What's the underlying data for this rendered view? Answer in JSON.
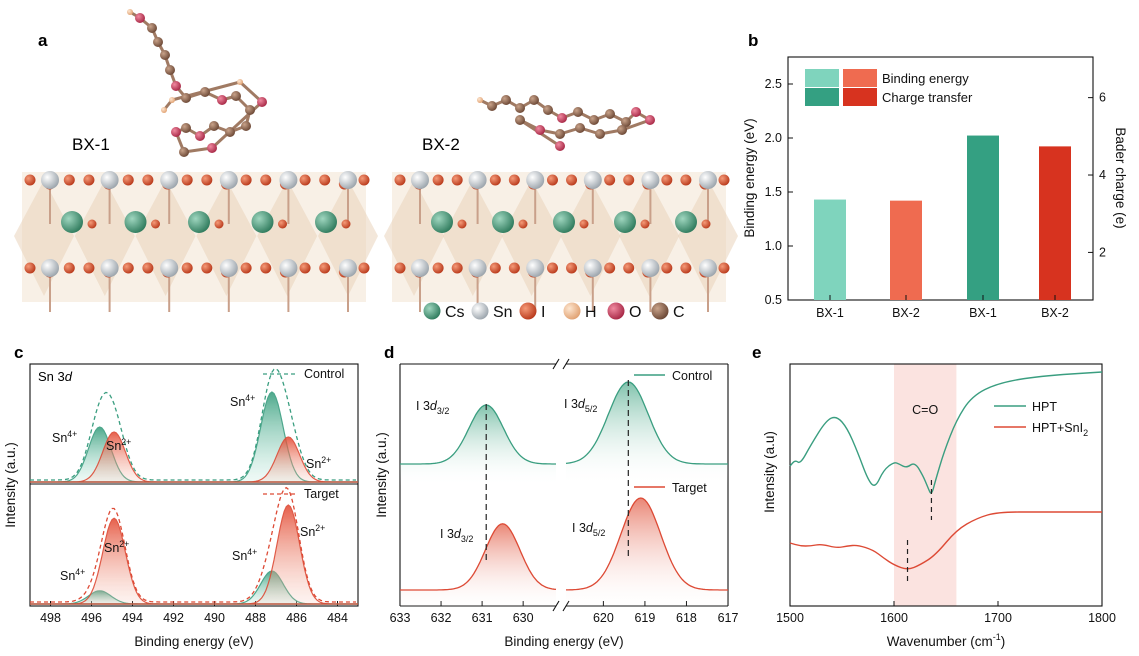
{
  "panels": {
    "a": {
      "letter": "a",
      "label_left": "BX-1",
      "label_right": "BX-2"
    },
    "b": {
      "letter": "b"
    },
    "c": {
      "letter": "c",
      "title_main": "Sn 3",
      "title_italic": "d"
    },
    "d": {
      "letter": "d"
    },
    "e": {
      "letter": "e",
      "annotation": "C=O"
    }
  },
  "structure_legend": [
    {
      "label": "Cs",
      "color": "#3f8f70"
    },
    {
      "label": "Sn",
      "color": "#d8dce0"
    },
    {
      "label": "I",
      "color": "#d04a25"
    },
    {
      "label": "H",
      "color": "#f2c29a"
    },
    {
      "label": "O",
      "color": "#c94060"
    },
    {
      "label": "C",
      "color": "#8a6248"
    }
  ],
  "colors": {
    "teal": "#3a9e80",
    "teal_light": "#7fd4bd",
    "teal_dark": "#34a082",
    "red": "#dd4a35",
    "red_light": "#ef6b50",
    "red_dark": "#d7331f",
    "shade": "#fbe3e0"
  },
  "chart_data": [
    {
      "panel": "b",
      "type": "bar",
      "categories": [
        "BX-1",
        "BX-2",
        "BX-1",
        "BX-2"
      ],
      "series": [
        {
          "name": "Binding energy",
          "axis": "left",
          "values": [
            1.43,
            1.42,
            null,
            null
          ]
        },
        {
          "name": "Charge transfer",
          "axis": "right",
          "values": [
            null,
            null,
            5.02,
            4.74
          ]
        }
      ],
      "ylabel": "Binding energy (eV)",
      "ylim": [
        0.5,
        2.75
      ],
      "yticks": [
        "0.5",
        "1.0",
        "1.5",
        "2.0",
        "2.5"
      ],
      "y2label": "Bader charge (e)",
      "y2ticks": [
        "2",
        "4",
        "6"
      ],
      "legend_position": "top-left"
    },
    {
      "panel": "c",
      "type": "line",
      "xlabel": "Binding energy (eV)",
      "ylabel": "Intensity (a.u.)",
      "xlim": [
        499,
        483
      ],
      "xticks": [
        "498",
        "496",
        "494",
        "492",
        "490",
        "488",
        "486",
        "484"
      ],
      "subpanels": [
        {
          "name": "Control",
          "peaks": [
            {
              "label": "Sn",
              "sup": "4+",
              "center": 495.6,
              "height": 0.55,
              "color": "teal"
            },
            {
              "label": "Sn",
              "sup": "2+",
              "center": 494.9,
              "height": 0.5,
              "color": "red"
            },
            {
              "label": "Sn",
              "sup": "4+",
              "center": 487.2,
              "height": 0.9,
              "color": "teal"
            },
            {
              "label": "Sn",
              "sup": "2+",
              "center": 486.4,
              "height": 0.45,
              "color": "red"
            }
          ]
        },
        {
          "name": "Target",
          "peaks": [
            {
              "label": "Sn",
              "sup": "4+",
              "center": 495.6,
              "height": 0.12,
              "color": "teal"
            },
            {
              "label": "Sn",
              "sup": "2+",
              "center": 494.9,
              "height": 0.78,
              "color": "red"
            },
            {
              "label": "Sn",
              "sup": "4+",
              "center": 487.2,
              "height": 0.3,
              "color": "teal"
            },
            {
              "label": "Sn",
              "sup": "2+",
              "center": 486.4,
              "height": 0.9,
              "color": "red"
            }
          ]
        }
      ]
    },
    {
      "panel": "d",
      "type": "line",
      "xlabel": "Binding energy (eV)",
      "ylabel": "Intensity (a.u.)",
      "xticks": [
        "633",
        "632",
        "631",
        "630",
        "620",
        "619",
        "618",
        "617"
      ],
      "series": [
        {
          "name": "Control",
          "peaks": [
            {
              "label": "I 3",
              "sub": "3/2",
              "center": 630.9
            },
            {
              "label": "I 3",
              "sub": "5/2",
              "center": 619.4
            }
          ]
        },
        {
          "name": "Target",
          "peaks": [
            {
              "label": "I 3",
              "sub": "3/2",
              "center": 630.5
            },
            {
              "label": "I 3",
              "sub": "5/2",
              "center": 619.1
            }
          ]
        }
      ]
    },
    {
      "panel": "e",
      "type": "line",
      "xlabel": "Wavenumber (cm",
      "xlabel_sup": "-1",
      "xlabel_end": ")",
      "ylabel": "Intensity (a.u)",
      "xlim": [
        1500,
        1800
      ],
      "xticks": [
        "1500",
        "1600",
        "1700",
        "1800"
      ],
      "series": [
        {
          "name": "HPT",
          "color": "teal",
          "marker_x": 1636
        },
        {
          "name": "HPT+SnI",
          "name_sub": "2",
          "color": "red",
          "marker_x": 1613
        }
      ],
      "shaded_band": [
        1600,
        1660
      ]
    }
  ]
}
